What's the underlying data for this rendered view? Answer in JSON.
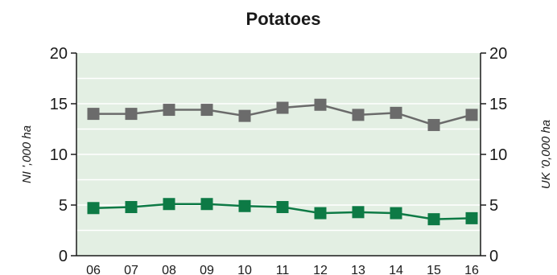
{
  "chart_data": {
    "type": "line",
    "title": "Potatoes",
    "categories": [
      "06",
      "07",
      "08",
      "09",
      "10",
      "11",
      "12",
      "13",
      "14",
      "15",
      "16"
    ],
    "y_left": {
      "label": "NI ',000 ha",
      "range": [
        0,
        20
      ],
      "ticks": [
        "0",
        "5",
        "10",
        "15",
        "20"
      ]
    },
    "y_right": {
      "label": "UK '0,000 ha",
      "range": [
        0,
        20
      ],
      "ticks": [
        "0",
        "5",
        "10",
        "15",
        "20"
      ]
    },
    "grid": true,
    "background_color": "#e3efe3",
    "series": [
      {
        "axis": "right",
        "color": "#6b6b6b",
        "marker": "square",
        "values": [
          14.0,
          14.0,
          14.4,
          14.4,
          13.8,
          14.6,
          14.9,
          13.9,
          14.1,
          12.9,
          13.9
        ]
      },
      {
        "axis": "left",
        "color": "#0d7a45",
        "marker": "square",
        "values": [
          4.7,
          4.8,
          5.1,
          5.1,
          4.9,
          4.8,
          4.2,
          4.3,
          4.2,
          3.6,
          3.7
        ]
      }
    ]
  }
}
